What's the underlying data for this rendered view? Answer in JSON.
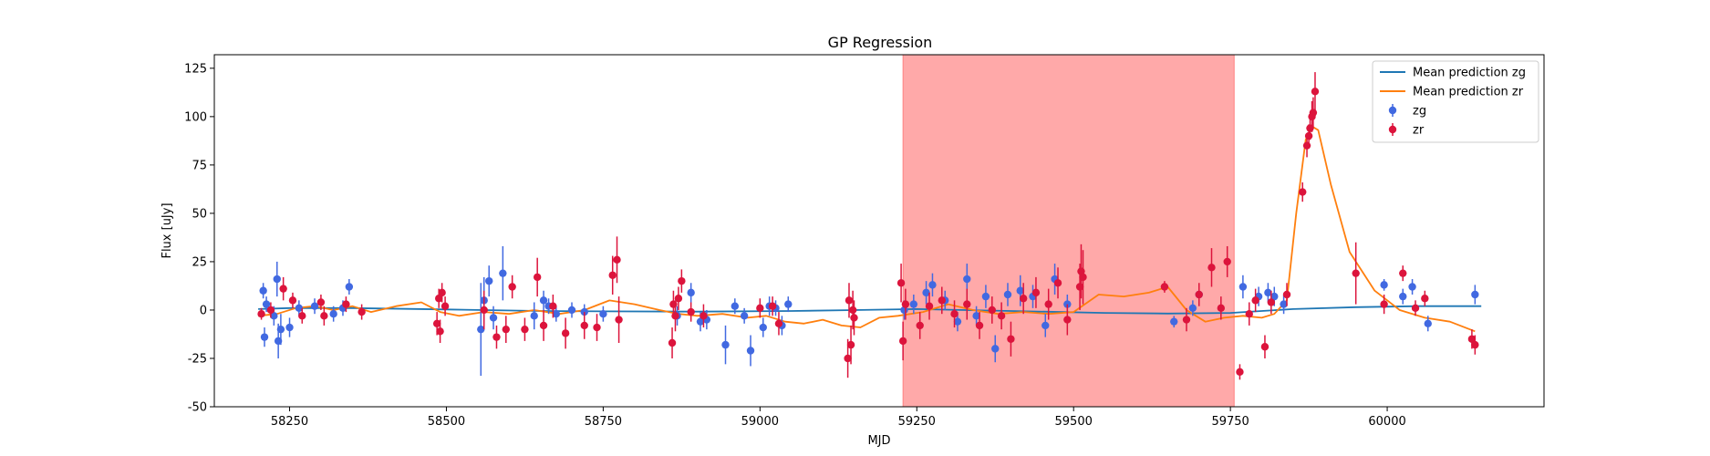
{
  "colors": {
    "zg": "#4169e1",
    "zr": "#dc143c",
    "mean_zg": "#1f77b4",
    "mean_zr": "#ff7f0e",
    "shade": "#ff7070"
  },
  "chart_data": {
    "type": "scatter",
    "title": "GP Regression",
    "xlabel": "MJD",
    "ylabel": "Flux [uJy]",
    "xlim": [
      58130,
      60250
    ],
    "ylim": [
      -50,
      132
    ],
    "xticks": [
      58250,
      58500,
      58750,
      59000,
      59250,
      59500,
      59750,
      60000
    ],
    "yticks": [
      -50,
      -25,
      0,
      25,
      50,
      75,
      100,
      125
    ],
    "grid": false,
    "legend_position": "top-right",
    "shaded_region": [
      59228,
      59756
    ],
    "legend": [
      "Mean prediction zg",
      "Mean prediction zr",
      "zg",
      "zr"
    ],
    "lines": [
      {
        "name": "Mean prediction zg",
        "x": [
          58200,
          58250,
          58350,
          58500,
          58650,
          58750,
          58900,
          59050,
          59150,
          59250,
          59400,
          59550,
          59650,
          59750,
          59800,
          59850,
          59950,
          60050,
          60150
        ],
        "y": [
          0.5,
          1.0,
          1.0,
          0.3,
          -0.5,
          -0.7,
          -0.8,
          -0.5,
          0.0,
          0.5,
          -0.5,
          -1.5,
          -1.8,
          -1.5,
          -0.5,
          0.5,
          1.5,
          2.0,
          2.0
        ]
      },
      {
        "name": "Mean prediction zr",
        "x": [
          58200,
          58230,
          58260,
          58290,
          58320,
          58350,
          58380,
          58420,
          58460,
          58490,
          58520,
          58560,
          58600,
          58640,
          58680,
          58720,
          58760,
          58800,
          58840,
          58870,
          58900,
          58940,
          58980,
          59010,
          59040,
          59070,
          59100,
          59130,
          59160,
          59190,
          59220,
          59260,
          59300,
          59340,
          59380,
          59420,
          59460,
          59500,
          59540,
          59580,
          59620,
          59650,
          59680,
          59710,
          59740,
          59770,
          59800,
          59820,
          59840,
          59855,
          59870,
          59880,
          59890,
          59910,
          59940,
          59980,
          60020,
          60060,
          60100,
          60140
        ],
        "y": [
          -3,
          -2,
          1,
          2,
          0,
          2,
          -1,
          2,
          4,
          -1,
          -3,
          -1,
          -2,
          0,
          -2,
          0,
          5,
          3,
          0,
          -2,
          -3,
          -2,
          -4,
          -3,
          -6,
          -7,
          -5,
          -8,
          -9,
          -4,
          -3,
          -1,
          3,
          0,
          -2,
          -1,
          -2,
          -1,
          8,
          7,
          9,
          12,
          0,
          -6,
          -4,
          -3,
          -4,
          -2,
          5,
          50,
          88,
          95,
          93,
          65,
          30,
          10,
          0,
          -4,
          -6,
          -11
        ]
      }
    ],
    "series": [
      {
        "name": "zg",
        "x": [
          58208,
          58210,
          58213,
          58225,
          58230,
          58232,
          58236,
          58250,
          58265,
          58290,
          58320,
          58335,
          58345,
          58555,
          58560,
          58568,
          58575,
          58590,
          58640,
          58655,
          58663,
          58675,
          58700,
          58720,
          58750,
          58868,
          58890,
          58905,
          58915,
          58945,
          58960,
          58975,
          58985,
          59005,
          59015,
          59025,
          59035,
          59045,
          59230,
          59245,
          59265,
          59275,
          59295,
          59315,
          59330,
          59345,
          59360,
          59375,
          59395,
          59415,
          59435,
          59455,
          59470,
          59490,
          59660,
          59690,
          59700,
          59770,
          59795,
          59810,
          59820,
          59835,
          59995,
          60025,
          60040,
          60065,
          60140
        ],
        "y": [
          10,
          -14,
          3,
          -3,
          16,
          -16,
          -10,
          -9,
          1,
          2,
          -2,
          1,
          12,
          -10,
          5,
          15,
          -4,
          19,
          -3,
          5,
          2,
          -2,
          0,
          -1,
          -2,
          -3,
          9,
          -6,
          -5,
          -18,
          2,
          -3,
          -21,
          -9,
          2,
          1,
          -8,
          3,
          0,
          3,
          9,
          13,
          5,
          -6,
          16,
          -3,
          7,
          -20,
          8,
          10,
          7,
          -8,
          16,
          3,
          -6,
          1,
          8,
          12,
          7,
          9,
          7,
          3,
          13,
          7,
          12,
          -7,
          8
        ],
        "err": [
          4,
          5,
          4,
          5,
          9,
          9,
          8,
          5,
          4,
          4,
          4,
          4,
          4,
          24,
          12,
          8,
          6,
          14,
          7,
          5,
          4,
          4,
          4,
          4,
          4,
          5,
          5,
          5,
          5,
          10,
          4,
          4,
          8,
          5,
          5,
          4,
          5,
          4,
          5,
          5,
          6,
          6,
          5,
          5,
          8,
          5,
          6,
          7,
          6,
          8,
          6,
          6,
          8,
          5,
          3,
          4,
          5,
          6,
          5,
          5,
          5,
          5,
          3,
          4,
          4,
          4,
          5
        ]
      },
      {
        "name": "zr",
        "x": [
          58205,
          58220,
          58240,
          58255,
          58270,
          58300,
          58305,
          58340,
          58365,
          58485,
          58488,
          58490,
          58493,
          58498,
          58560,
          58580,
          58595,
          58605,
          58625,
          58645,
          58655,
          58670,
          58690,
          58720,
          58740,
          58765,
          58772,
          58775,
          58860,
          58862,
          58865,
          58870,
          58875,
          58890,
          58910,
          59000,
          59020,
          59030,
          59140,
          59142,
          59145,
          59148,
          59150,
          59225,
          59228,
          59232,
          59255,
          59270,
          59290,
          59310,
          59330,
          59350,
          59370,
          59385,
          59400,
          59420,
          59440,
          59460,
          59475,
          59490,
          59510,
          59512,
          59515,
          59645,
          59680,
          59700,
          59720,
          59735,
          59745,
          59765,
          59780,
          59790,
          59805,
          59815,
          59840,
          59865,
          59872,
          59875,
          59877,
          59880,
          59882,
          59885,
          59950,
          59995,
          60025,
          60045,
          60060,
          60135,
          60140
        ],
        "y": [
          -2,
          0,
          11,
          5,
          -3,
          4,
          -3,
          3,
          -1,
          -7,
          6,
          -11,
          9,
          2,
          0,
          -14,
          -10,
          12,
          -10,
          17,
          -8,
          2,
          -12,
          -8,
          -9,
          18,
          26,
          -5,
          -17,
          3,
          -3,
          6,
          15,
          -1,
          -3,
          1,
          2,
          -7,
          -25,
          5,
          -18,
          0,
          -4,
          14,
          -16,
          3,
          -8,
          2,
          5,
          -2,
          3,
          -8,
          0,
          -3,
          -15,
          6,
          9,
          3,
          14,
          -5,
          12,
          20,
          17,
          12,
          -5,
          8,
          22,
          1,
          25,
          -32,
          -2,
          5,
          -19,
          4,
          8,
          61,
          85,
          90,
          94,
          100,
          102,
          113,
          19,
          3,
          19,
          1,
          6,
          -15,
          -18
        ],
        "err": [
          3,
          4,
          6,
          4,
          4,
          4,
          5,
          4,
          4,
          6,
          5,
          6,
          5,
          5,
          10,
          6,
          7,
          6,
          6,
          10,
          8,
          6,
          8,
          7,
          7,
          10,
          12,
          12,
          8,
          7,
          8,
          6,
          6,
          5,
          6,
          5,
          5,
          6,
          10,
          9,
          10,
          10,
          9,
          10,
          10,
          8,
          7,
          7,
          7,
          7,
          8,
          7,
          7,
          7,
          9,
          8,
          8,
          8,
          8,
          8,
          12,
          14,
          14,
          3,
          6,
          6,
          10,
          6,
          8,
          4,
          6,
          6,
          6,
          6,
          6,
          5,
          6,
          6,
          6,
          8,
          8,
          10,
          16,
          5,
          4,
          4,
          4,
          5,
          5
        ]
      }
    ]
  }
}
